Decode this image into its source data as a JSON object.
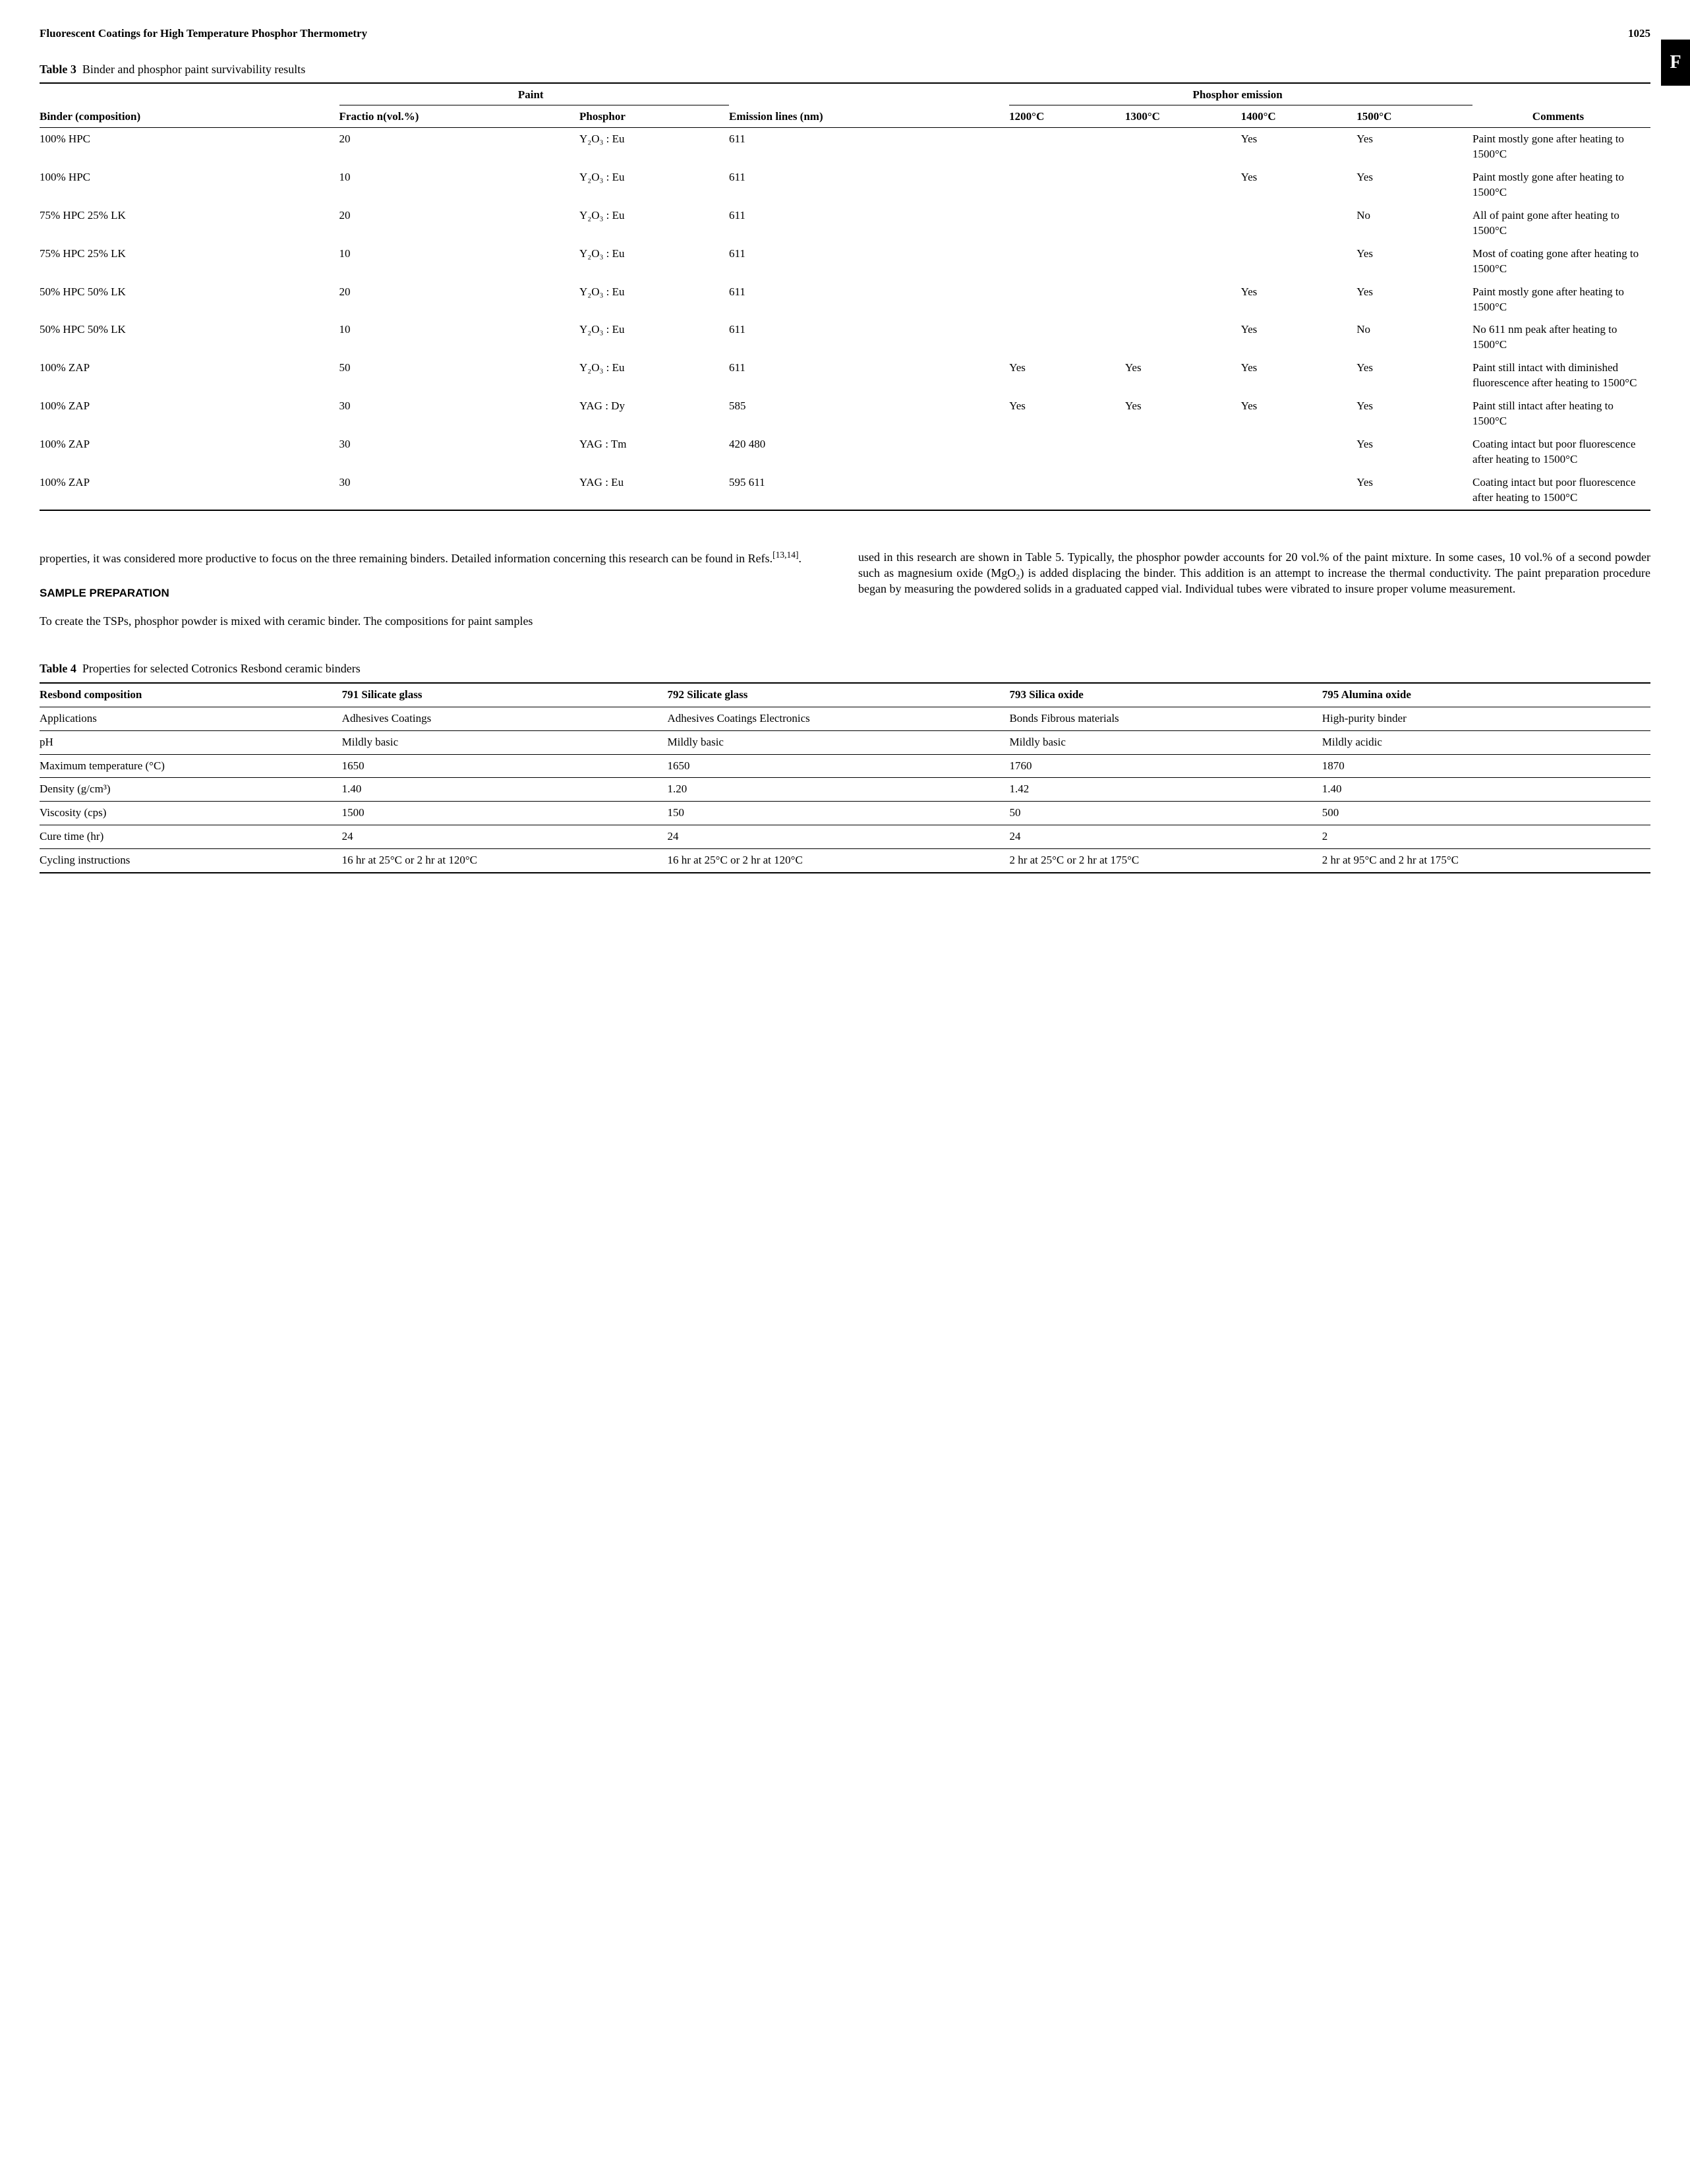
{
  "header": {
    "running_title": "Fluorescent Coatings for High Temperature Phosphor Thermometry",
    "page_number": "1025",
    "side_tab": "F"
  },
  "table3": {
    "caption_label": "Table 3",
    "caption_text": "Binder and phosphor paint survivability results",
    "group_paint": "Paint",
    "group_emission": "Phosphor emission",
    "cols": {
      "binder": "Binder (composition)",
      "fractio": "Fractio n(vol.%)",
      "phosphor": "Phosphor",
      "emission": "Emission lines (nm)",
      "t1200": "1200°C",
      "t1300": "1300°C",
      "t1400": "1400°C",
      "t1500": "1500°C",
      "comments": "Comments"
    },
    "rows": [
      {
        "binder": "100% HPC",
        "frac": "20",
        "phos": "Y₂O₃ : Eu",
        "emis": "611",
        "c1200": "",
        "c1300": "",
        "c1400": "Yes",
        "c1500": "Yes",
        "comm": "Paint mostly gone after heating to 1500°C"
      },
      {
        "binder": "100% HPC",
        "frac": "10",
        "phos": "Y₂O₃ : Eu",
        "emis": "611",
        "c1200": "",
        "c1300": "",
        "c1400": "Yes",
        "c1500": "Yes",
        "comm": "Paint mostly gone after heating to 1500°C"
      },
      {
        "binder": "75% HPC 25% LK",
        "frac": "20",
        "phos": "Y₂O₃ : Eu",
        "emis": "611",
        "c1200": "",
        "c1300": "",
        "c1400": "",
        "c1500": "No",
        "comm": "All of paint gone after heating to 1500°C"
      },
      {
        "binder": "75% HPC 25% LK",
        "frac": "10",
        "phos": "Y₂O₃ : Eu",
        "emis": "611",
        "c1200": "",
        "c1300": "",
        "c1400": "",
        "c1500": "Yes",
        "comm": "Most of coating gone after heating to 1500°C"
      },
      {
        "binder": "50% HPC 50% LK",
        "frac": "20",
        "phos": "Y₂O₃ : Eu",
        "emis": "611",
        "c1200": "",
        "c1300": "",
        "c1400": "Yes",
        "c1500": "Yes",
        "comm": "Paint mostly gone after heating to 1500°C"
      },
      {
        "binder": "50% HPC 50% LK",
        "frac": "10",
        "phos": "Y₂O₃ : Eu",
        "emis": "611",
        "c1200": "",
        "c1300": "",
        "c1400": "Yes",
        "c1500": "No",
        "comm": "No 611 nm peak after heating to 1500°C"
      },
      {
        "binder": "100% ZAP",
        "frac": "50",
        "phos": "Y₂O₃ : Eu",
        "emis": "611",
        "c1200": "Yes",
        "c1300": "Yes",
        "c1400": "Yes",
        "c1500": "Yes",
        "comm": "Paint still intact with diminished fluorescence after heating to 1500°C"
      },
      {
        "binder": "100% ZAP",
        "frac": "30",
        "phos": "YAG : Dy",
        "emis": "585",
        "c1200": "Yes",
        "c1300": "Yes",
        "c1400": "Yes",
        "c1500": "Yes",
        "comm": "Paint still intact after heating to 1500°C"
      },
      {
        "binder": "100% ZAP",
        "frac": "30",
        "phos": "YAG : Tm",
        "emis": "420 480",
        "c1200": "",
        "c1300": "",
        "c1400": "",
        "c1500": "Yes",
        "comm": "Coating intact but poor fluorescence after heating to 1500°C"
      },
      {
        "binder": "100% ZAP",
        "frac": "30",
        "phos": "YAG : Eu",
        "emis": "595 611",
        "c1200": "",
        "c1300": "",
        "c1400": "",
        "c1500": "Yes",
        "comm": "Coating intact but poor fluorescence after heating to 1500°C"
      }
    ]
  },
  "body": {
    "left_p1": "properties, it was considered more productive to focus on the three remaining binders. Detailed information concerning this research can be found in Refs.",
    "refs_sup": "[13,14]",
    "left_p1_end": ".",
    "section_head": "SAMPLE PREPARATION",
    "left_p2": "To create the TSPs, phosphor powder is mixed with ceramic binder. The compositions for paint samples",
    "right_p1": "used in this research are shown in Table 5. Typically, the phosphor powder accounts for 20 vol.% of the paint mixture. In some cases, 10 vol.% of a second powder such as magnesium oxide (MgO₂) is added displacing the binder. This addition is an attempt to increase the thermal conductivity. The paint preparation procedure began by measuring the powdered solids in a graduated capped vial. Individual tubes were vibrated to insure proper volume measurement."
  },
  "table4": {
    "caption_label": "Table 4",
    "caption_text": "Properties for selected Cotronics Resbond ceramic binders",
    "cols": {
      "comp": "Resbond composition",
      "c791": "791 Silicate glass",
      "c792": "792 Silicate glass",
      "c793": "793 Silica oxide",
      "c795": "795 Alumina oxide"
    },
    "rows": [
      {
        "k": "Applications",
        "a": "Adhesives Coatings",
        "b": "Adhesives Coatings Electronics",
        "c": "Bonds Fibrous materials",
        "d": "High-purity binder"
      },
      {
        "k": "pH",
        "a": "Mildly basic",
        "b": "Mildly basic",
        "c": "Mildly basic",
        "d": "Mildly acidic"
      },
      {
        "k": "Maximum temperature (°C)",
        "a": "1650",
        "b": "1650",
        "c": "1760",
        "d": "1870"
      },
      {
        "k": "Density (g/cm³)",
        "a": "1.40",
        "b": "1.20",
        "c": "1.42",
        "d": "1.40"
      },
      {
        "k": "Viscosity (cps)",
        "a": "1500",
        "b": "150",
        "c": "50",
        "d": "500"
      },
      {
        "k": "Cure time (hr)",
        "a": "24",
        "b": "24",
        "c": "24",
        "d": "2"
      },
      {
        "k": "Cycling instructions",
        "a": "16 hr at 25°C or 2 hr at 120°C",
        "b": "16 hr at 25°C or 2 hr at 120°C",
        "c": "2 hr at 25°C or 2 hr at 175°C",
        "d": "2 hr at 95°C and 2 hr at 175°C"
      }
    ]
  }
}
